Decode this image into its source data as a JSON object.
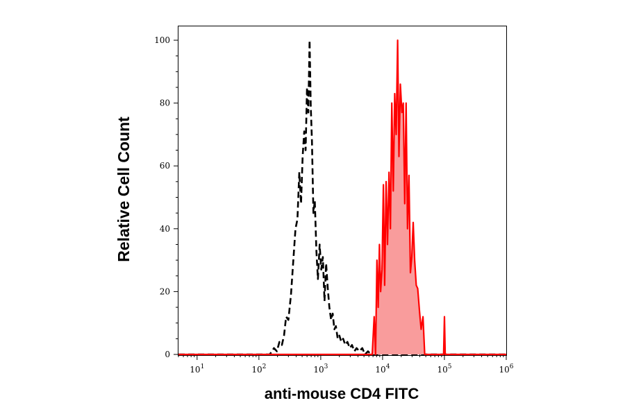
{
  "chart_data": {
    "type": "area",
    "xlabel": "anti-mouse CD4 FITC",
    "ylabel": "Relative Cell Count",
    "xscale": "log",
    "xlim": [
      5,
      1000000
    ],
    "ylim": [
      0,
      100
    ],
    "grid": false,
    "x_ticks": [
      {
        "value": 10,
        "base": "10",
        "exp": "1"
      },
      {
        "value": 100,
        "base": "10",
        "exp": "2"
      },
      {
        "value": 1000,
        "base": "10",
        "exp": "3"
      },
      {
        "value": 10000,
        "base": "10",
        "exp": "4"
      },
      {
        "value": 100000,
        "base": "10",
        "exp": "5"
      },
      {
        "value": 1000000,
        "base": "10",
        "exp": "6"
      }
    ],
    "y_ticks": [
      {
        "value": 0,
        "label": "0"
      },
      {
        "value": 20,
        "label": "20"
      },
      {
        "value": 40,
        "label": "40"
      },
      {
        "value": 60,
        "label": "60"
      },
      {
        "value": 80,
        "label": "80"
      },
      {
        "value": 100,
        "label": "100"
      }
    ],
    "series": [
      {
        "style": "dashed",
        "color": "#000000",
        "fill": "none",
        "x": [
          5,
          150,
          175,
          195,
          215,
          235,
          255,
          275,
          300,
          330,
          360,
          390,
          420,
          450,
          480,
          510,
          540,
          570,
          600,
          630,
          660,
          690,
          720,
          760,
          800,
          850,
          900,
          960,
          1020,
          1080,
          1150,
          1220,
          1300,
          1380,
          1470,
          1560,
          1660,
          1760,
          1880,
          2000,
          2150,
          2300,
          2500,
          2700,
          2950,
          3200,
          3500,
          3800,
          4200,
          4700,
          5200,
          5800,
          6500,
          1000000
        ],
        "y": [
          0,
          0,
          2,
          1,
          4,
          3,
          6,
          12,
          11,
          19,
          30,
          40,
          43,
          58,
          48,
          63,
          71,
          65,
          85,
          77,
          100,
          79,
          68,
          45,
          49,
          33,
          24,
          35,
          27,
          31,
          17,
          29,
          21,
          15,
          11,
          13,
          8,
          9,
          5,
          6,
          4,
          5,
          3,
          4,
          2,
          3,
          1,
          2,
          1,
          2,
          0,
          1,
          0,
          0
        ]
      },
      {
        "style": "solid",
        "color": "#ff0000",
        "fill": "#f99c9c",
        "x": [
          5,
          6800,
          7300,
          7700,
          8100,
          8500,
          8900,
          9300,
          9800,
          10300,
          10800,
          11400,
          12000,
          12700,
          13400,
          14100,
          14900,
          15700,
          16600,
          17500,
          18400,
          19400,
          20500,
          21600,
          22800,
          24000,
          25300,
          26700,
          28200,
          29700,
          31300,
          33000,
          35000,
          37000,
          39500,
          42000,
          45000,
          48000,
          51000,
          55000,
          60000,
          70000,
          85000,
          97000,
          100000,
          103000,
          115000,
          1000000
        ],
        "y": [
          0,
          0,
          12,
          0,
          30,
          15,
          35,
          20,
          27,
          54,
          22,
          55,
          35,
          58,
          40,
          80,
          52,
          83,
          70,
          100,
          63,
          86,
          77,
          80,
          48,
          80,
          40,
          57,
          26,
          31,
          42,
          30,
          22,
          21,
          14,
          8,
          12,
          0,
          0,
          0,
          0,
          0,
          0,
          0,
          12,
          0,
          0,
          0
        ]
      }
    ]
  }
}
